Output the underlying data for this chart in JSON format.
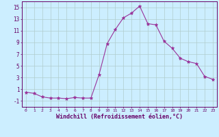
{
  "hours": [
    0,
    1,
    2,
    3,
    4,
    5,
    6,
    7,
    8,
    9,
    10,
    11,
    12,
    13,
    14,
    15,
    16,
    17,
    18,
    19,
    20,
    21,
    22,
    23
  ],
  "values": [
    0.5,
    0.3,
    -0.3,
    -0.5,
    -0.5,
    -0.6,
    -0.4,
    -0.5,
    -0.5,
    3.5,
    8.8,
    11.2,
    13.2,
    14.0,
    15.2,
    12.2,
    12.0,
    9.2,
    8.0,
    6.3,
    5.7,
    5.4,
    3.2,
    2.7
  ],
  "line_color": "#993399",
  "marker": "*",
  "bg_color": "#cceeff",
  "grid_color": "#b0cccc",
  "xlabel": "Windchill (Refroidissement éolien,°C)",
  "ylabel_ticks": [
    -1,
    1,
    3,
    5,
    7,
    9,
    11,
    13,
    15
  ],
  "ylim": [
    -2,
    16
  ],
  "xlim": [
    -0.5,
    23.5
  ],
  "label_color": "#660066",
  "tick_color": "#660066"
}
